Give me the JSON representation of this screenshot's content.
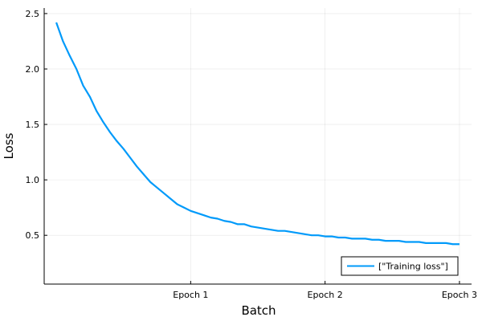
{
  "chart_data": {
    "type": "line",
    "title": "",
    "xlabel": "Batch",
    "ylabel": "Loss",
    "x_ticks": [
      {
        "value": 1,
        "label": "Epoch 1"
      },
      {
        "value": 2,
        "label": "Epoch 2"
      },
      {
        "value": 3,
        "label": "Epoch 3"
      }
    ],
    "y_ticks": [
      0.5,
      1.0,
      1.5,
      2.0,
      2.5
    ],
    "y_tick_labels": [
      "0.5",
      "1.0",
      "1.5",
      "2.0",
      "2.5"
    ],
    "xlim": [
      -0.09,
      3.09
    ],
    "ylim": [
      0.06,
      2.55
    ],
    "grid": true,
    "legend_position": "bottom-right",
    "series": [
      {
        "name": "[\"Training loss\"]",
        "color": "#009AFA",
        "x": [
          0.0,
          0.05,
          0.1,
          0.15,
          0.2,
          0.25,
          0.3,
          0.35,
          0.4,
          0.45,
          0.5,
          0.55,
          0.6,
          0.65,
          0.7,
          0.75,
          0.8,
          0.85,
          0.9,
          0.95,
          1.0,
          1.05,
          1.1,
          1.15,
          1.2,
          1.25,
          1.3,
          1.35,
          1.4,
          1.45,
          1.5,
          1.55,
          1.6,
          1.65,
          1.7,
          1.75,
          1.8,
          1.85,
          1.9,
          1.95,
          2.0,
          2.05,
          2.1,
          2.15,
          2.2,
          2.25,
          2.3,
          2.35,
          2.4,
          2.45,
          2.5,
          2.55,
          2.6,
          2.65,
          2.7,
          2.75,
          2.8,
          2.85,
          2.9,
          2.95,
          3.0
        ],
        "y": [
          2.42,
          2.25,
          2.12,
          2.0,
          1.85,
          1.75,
          1.62,
          1.52,
          1.43,
          1.35,
          1.28,
          1.2,
          1.12,
          1.05,
          0.98,
          0.93,
          0.88,
          0.83,
          0.78,
          0.75,
          0.72,
          0.7,
          0.68,
          0.66,
          0.65,
          0.63,
          0.62,
          0.6,
          0.6,
          0.58,
          0.57,
          0.56,
          0.55,
          0.54,
          0.54,
          0.53,
          0.52,
          0.51,
          0.5,
          0.5,
          0.49,
          0.49,
          0.48,
          0.48,
          0.47,
          0.47,
          0.47,
          0.46,
          0.46,
          0.45,
          0.45,
          0.45,
          0.44,
          0.44,
          0.44,
          0.43,
          0.43,
          0.43,
          0.43,
          0.42,
          0.42
        ]
      }
    ]
  }
}
